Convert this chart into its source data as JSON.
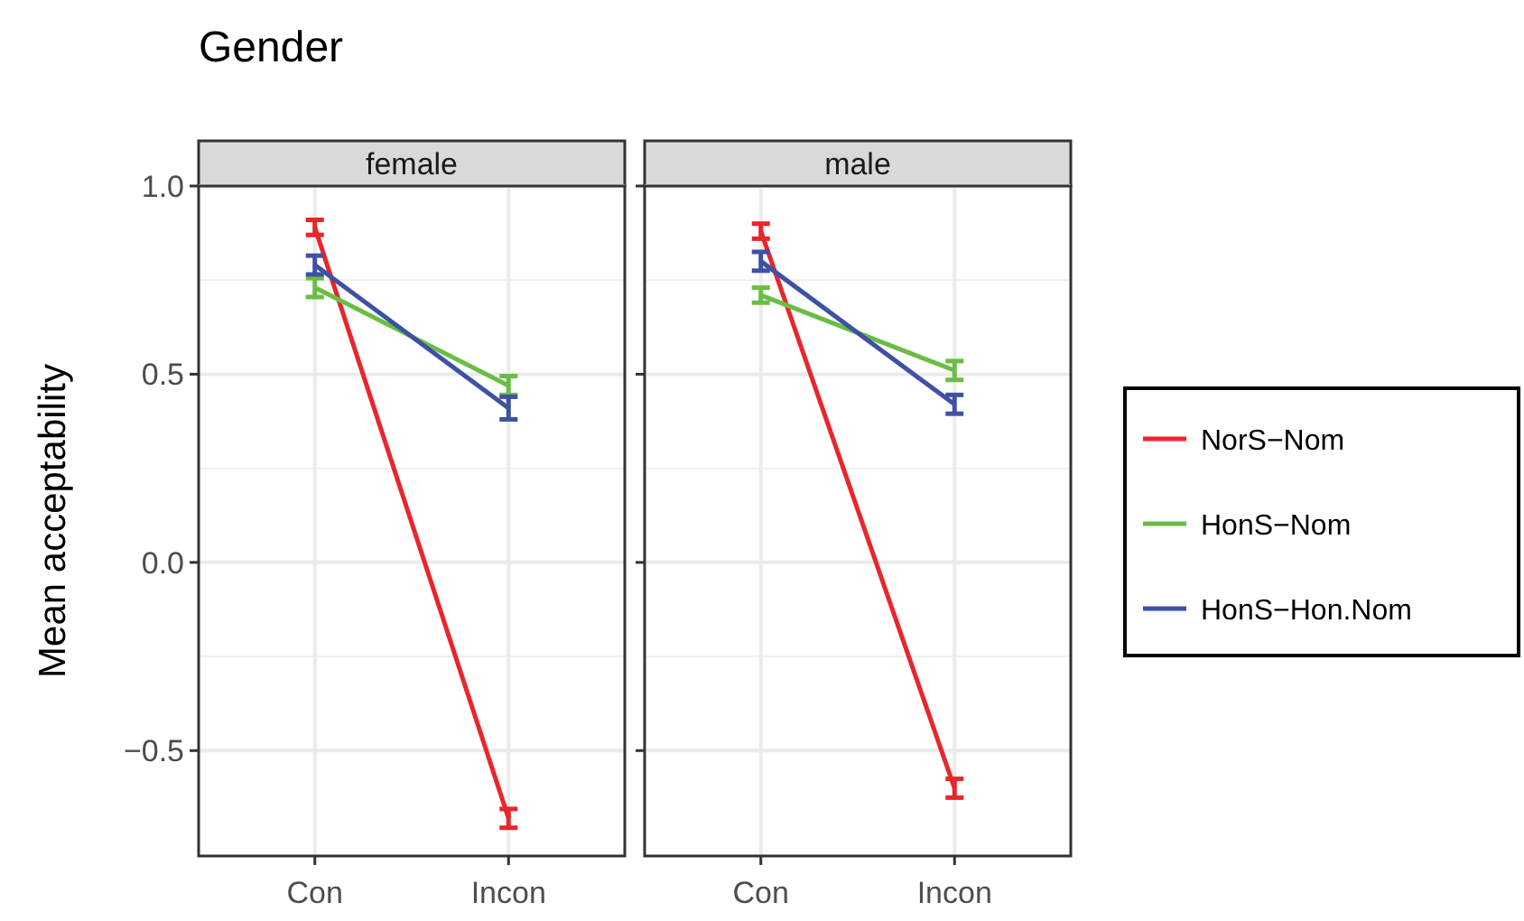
{
  "chart_data": [
    {
      "type": "line",
      "title": "Gender",
      "subtitle": "female",
      "ylabel": "Mean acceptability",
      "categories": [
        "Con",
        "Incon"
      ],
      "ylim": [
        -0.78,
        1.0
      ],
      "yticks": [
        {
          "value": 1.0,
          "label": "1.0"
        },
        {
          "value": 0.5,
          "label": "0.5"
        },
        {
          "value": 0.0,
          "label": "0.0"
        },
        {
          "value": -0.5,
          "label": "−0.5"
        }
      ],
      "grid": true,
      "series": [
        {
          "color": "#e8262b",
          "values": [
            0.89,
            -0.68
          ],
          "errors": [
            0.02,
            0.025
          ]
        },
        {
          "color": "#6abd45",
          "values": [
            0.73,
            0.47
          ],
          "errors": [
            0.025,
            0.025
          ]
        },
        {
          "color": "#3f51a3",
          "values": [
            0.79,
            0.41
          ],
          "errors": [
            0.025,
            0.03
          ]
        }
      ]
    },
    {
      "type": "line",
      "subtitle": "male",
      "categories": [
        "Con",
        "Incon"
      ],
      "ylim": [
        -0.78,
        1.0
      ],
      "yticks": [
        {
          "value": 1.0,
          "label": null
        },
        {
          "value": 0.5,
          "label": null
        },
        {
          "value": 0.0,
          "label": null
        },
        {
          "value": -0.5,
          "label": null
        }
      ],
      "tick_labels": "x",
      "grid": true,
      "legend": "right",
      "series": [
        {
          "name": "NorS−Nom",
          "color": "#e8262b",
          "values": [
            0.88,
            -0.6
          ],
          "errors": [
            0.02,
            0.025
          ]
        },
        {
          "name": "HonS−Nom",
          "color": "#6abd45",
          "values": [
            0.71,
            0.51
          ],
          "errors": [
            0.02,
            0.025
          ]
        },
        {
          "name": "HonS−Hon.Nom",
          "color": "#3f51a3",
          "values": [
            0.8,
            0.42
          ],
          "errors": [
            0.025,
            0.025
          ]
        }
      ]
    }
  ]
}
